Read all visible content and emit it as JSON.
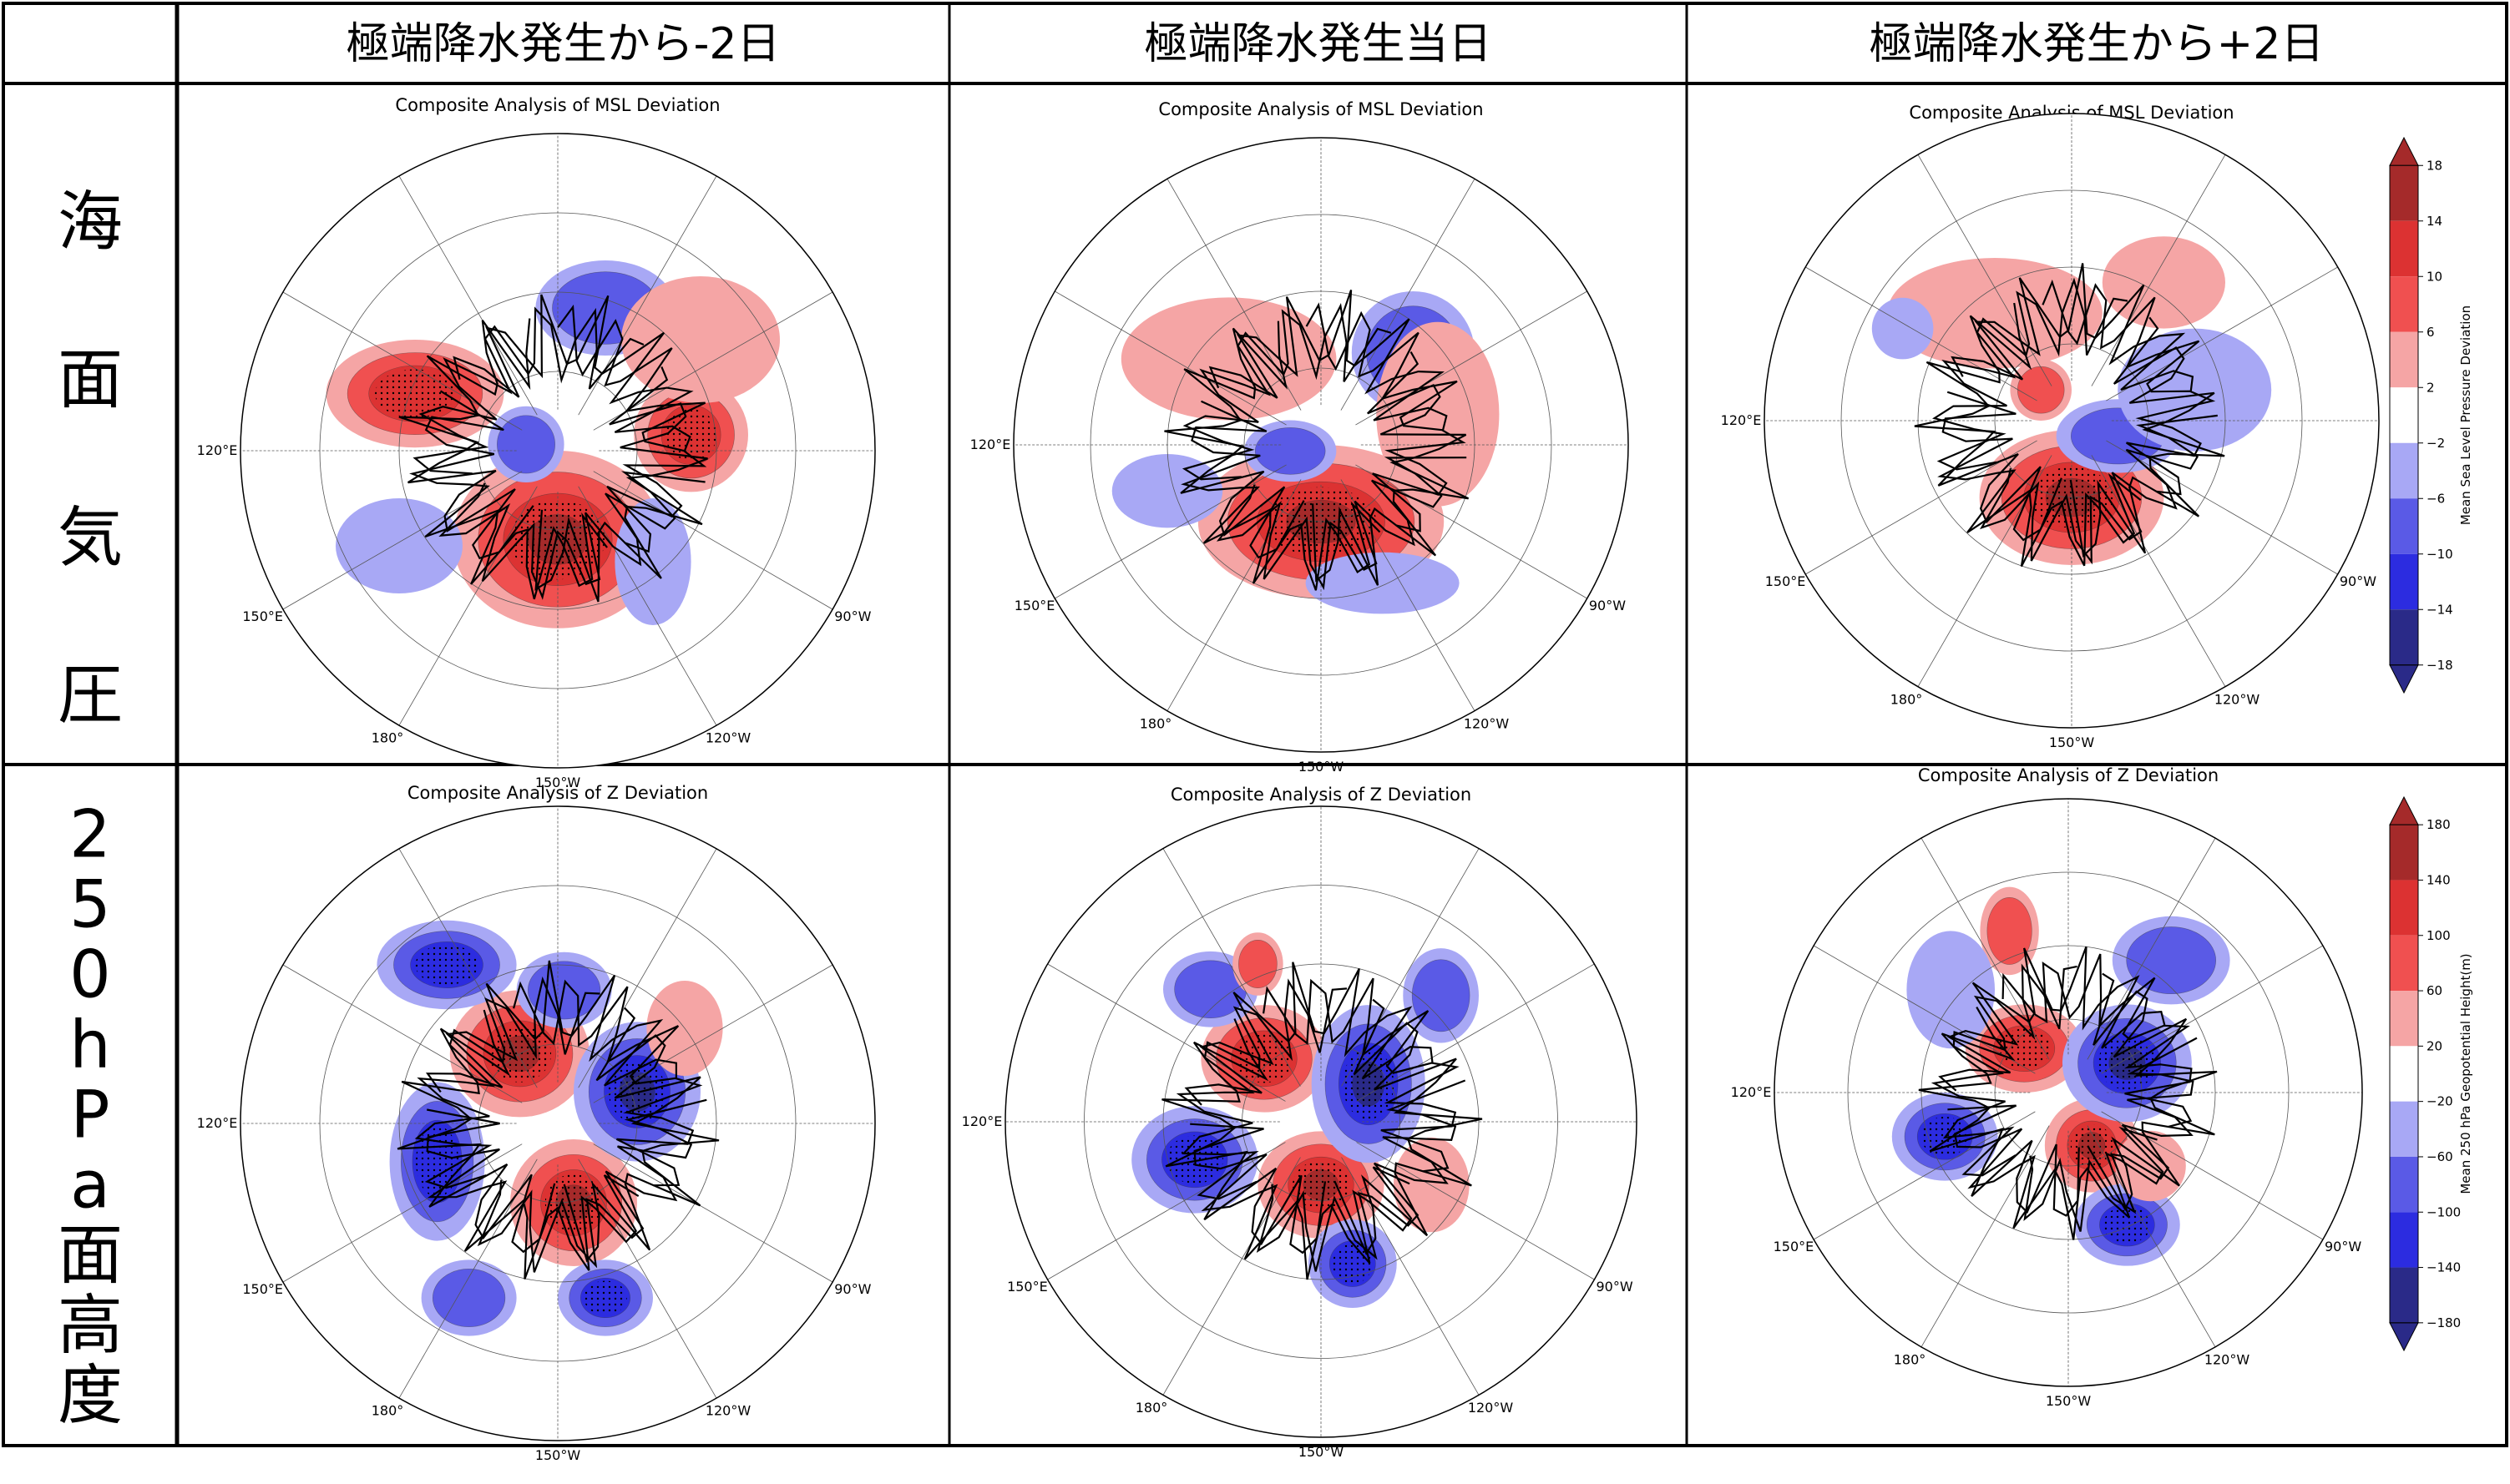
{
  "columns": [
    "極端降水発生から-2日",
    "極端降水発生当日",
    "極端降水発生から+2日"
  ],
  "rows": [
    {
      "label": "海面気圧",
      "glyphs": [
        "海",
        "面",
        "気",
        "圧"
      ]
    },
    {
      "label": "250hPa面高度",
      "glyphs": [
        "2",
        "5",
        "0",
        "h",
        "P",
        "a",
        "面",
        "高",
        "度"
      ]
    }
  ],
  "lon_labels": [
    "120°E",
    "150°E",
    "180°",
    "150°W",
    "120°W",
    "90°W"
  ],
  "colors": {
    "dark_red": "#a52a2a",
    "red": "#dc3232",
    "mid_red": "#f05050",
    "light_red": "#f5a5a5",
    "white": "#ffffff",
    "light_blue": "#a8a8f5",
    "mid_blue": "#5a5ae6",
    "blue": "#2c2ce0",
    "dark_blue": "#2a2a88",
    "coast": "#000000"
  },
  "chart_data": [
    {
      "type": "heatmap",
      "title": "Composite Analysis of MSL Deviation",
      "variable": "MSL deviation",
      "day": "-2"
    },
    {
      "type": "heatmap",
      "title": "Composite Analysis of MSL Deviation",
      "variable": "MSL deviation",
      "day": "0"
    },
    {
      "type": "heatmap",
      "title": "Composite Analysis of MSL Deviation",
      "variable": "MSL deviation",
      "day": "+2",
      "colorbar": {
        "label": "Mean Sea Level Pressure Deviation",
        "levels": [
          18,
          14,
          10,
          6,
          2,
          -2,
          -6,
          -10,
          -14,
          -18
        ],
        "ticks": [
          "18",
          "14",
          "10",
          "6",
          "2",
          "−2",
          "−6",
          "−10",
          "−14",
          "−18"
        ]
      }
    },
    {
      "type": "heatmap",
      "title": "Composite Analysis of Z Deviation",
      "variable": "Z deviation",
      "day": "-2"
    },
    {
      "type": "heatmap",
      "title": "Composite Analysis of Z Deviation",
      "variable": "Z deviation",
      "day": "0"
    },
    {
      "type": "heatmap",
      "title": "Composite Analysis of Z Deviation",
      "variable": "Z deviation",
      "day": "+2",
      "colorbar": {
        "label": "Mean 250 hPa Geopotential Height(m)",
        "levels": [
          180,
          140,
          100,
          60,
          20,
          -20,
          -60,
          -100,
          -140,
          -180
        ],
        "ticks": [
          "180",
          "140",
          "100",
          "60",
          "20",
          "−20",
          "−60",
          "−100",
          "−140",
          "−180"
        ]
      }
    }
  ]
}
